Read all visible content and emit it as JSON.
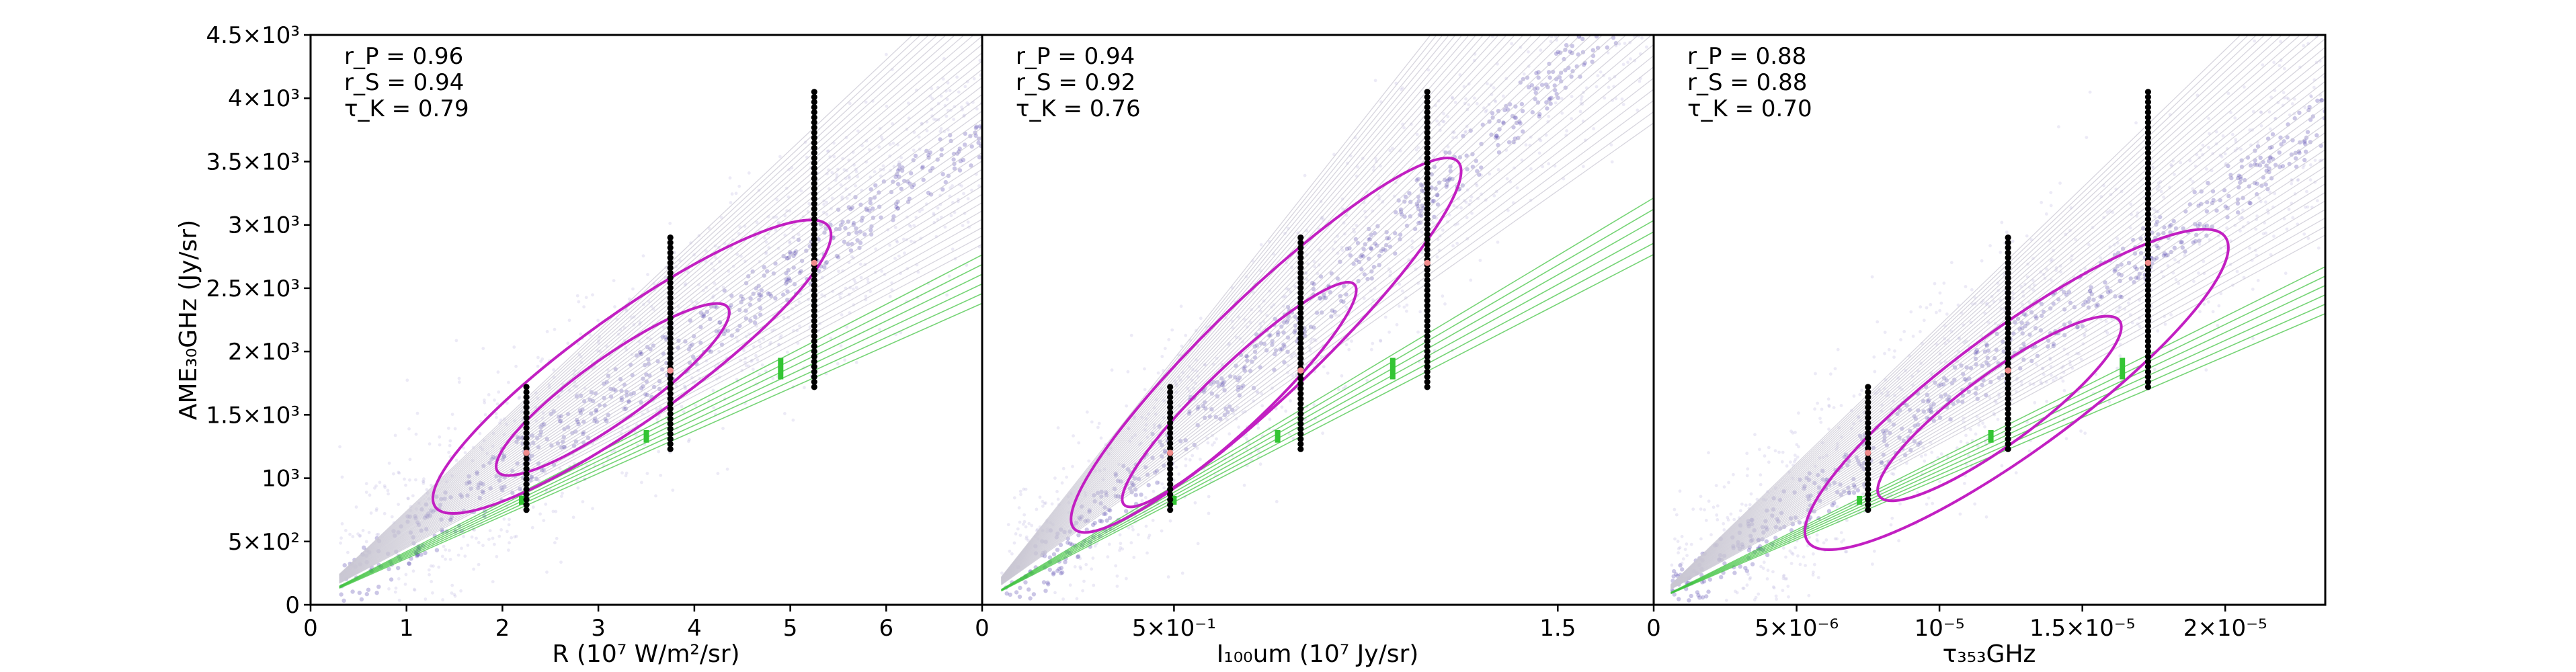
{
  "chart_data": [
    {
      "type": "scatter",
      "panel": "left",
      "xlabel": "R (10⁷ W/m²/sr)",
      "ylabel": "AME₃₀GHz (Jy/sr)",
      "xlim": [
        0,
        7
      ],
      "ylim": [
        0,
        4500
      ],
      "x_ticks": [
        0,
        1,
        2,
        3,
        4,
        5,
        6
      ],
      "x_tick_labels": [
        "0",
        "1",
        "2",
        "3",
        "4",
        "5",
        "6"
      ],
      "y_ticks": [
        0,
        500,
        1000,
        1500,
        2000,
        2500,
        3000,
        3500,
        4000,
        4500
      ],
      "y_tick_labels": [
        "0",
        "5×10²",
        "10³",
        "1.5×10³",
        "2×10³",
        "2.5×10³",
        "3×10³",
        "3.5×10³",
        "4×10³",
        "4.5×10³"
      ],
      "stats": [
        "r_P = 0.96",
        "r_S = 0.94",
        "τ_K = 0.79"
      ],
      "bin_columns": [
        {
          "x": 2.25,
          "y_min": 750,
          "y_max": 1720,
          "median": 1200
        },
        {
          "x": 3.75,
          "y_min": 1230,
          "y_max": 2900,
          "median": 1850
        },
        {
          "x": 5.25,
          "y_min": 1720,
          "y_max": 4050,
          "median": 2700
        }
      ],
      "green_markers": [
        {
          "x": 2.2,
          "y_min": 790,
          "y_max": 860
        },
        {
          "x": 3.5,
          "y_min": 1280,
          "y_max": 1380
        },
        {
          "x": 4.9,
          "y_min": 1780,
          "y_max": 1950
        }
      ],
      "green_fit": {
        "slope": 365,
        "intercept": 10
      },
      "grey_fit": {
        "slope": 540,
        "intercept": -60
      },
      "contour_outer": {
        "cx": 3.35,
        "cy": 1880,
        "halfwidth": 2.05,
        "halfheight": 420
      },
      "contour_inner": {
        "cx": 3.15,
        "cy": 1700,
        "halfwidth": 1.2,
        "halfheight": 250
      },
      "cloud": {
        "x0": 0.3,
        "x1": 7.0
      }
    },
    {
      "type": "scatter",
      "panel": "middle",
      "xlabel": "I₁₀₀um (10⁷ Jy/sr)",
      "ylabel": "",
      "xlim": [
        0,
        1.75
      ],
      "ylim": [
        0,
        4500
      ],
      "x_ticks": [
        0,
        0.5,
        1.5
      ],
      "x_tick_labels": [
        "0",
        "5×10⁻¹",
        "1.5"
      ],
      "y_ticks": [],
      "y_tick_labels": [],
      "stats": [
        "r_P = 0.94",
        "r_S = 0.92",
        "τ_K = 0.76"
      ],
      "bin_columns": [
        {
          "x": 0.49,
          "y_min": 750,
          "y_max": 1720,
          "median": 1200
        },
        {
          "x": 0.83,
          "y_min": 1230,
          "y_max": 2900,
          "median": 1850
        },
        {
          "x": 1.16,
          "y_min": 1720,
          "y_max": 4050,
          "median": 2700
        }
      ],
      "green_markers": [
        {
          "x": 0.5,
          "y_min": 790,
          "y_max": 860
        },
        {
          "x": 0.77,
          "y_min": 1280,
          "y_max": 1380
        },
        {
          "x": 1.07,
          "y_min": 1780,
          "y_max": 1950
        }
      ],
      "green_fit": {
        "slope": 1700,
        "intercept": 10
      },
      "grey_fit": {
        "slope": 2900,
        "intercept": -150
      },
      "contour_outer": {
        "cx": 0.74,
        "cy": 2050,
        "halfwidth": 0.5,
        "halfheight": 400
      },
      "contour_inner": {
        "cx": 0.67,
        "cy": 1660,
        "halfwidth": 0.3,
        "halfheight": 240
      },
      "cloud": {
        "x0": 0.05,
        "x1": 1.75
      }
    },
    {
      "type": "scatter",
      "panel": "right",
      "xlabel": "τ₃₅₃GHz",
      "ylabel": "",
      "xlim": [
        0,
        2.35e-05
      ],
      "ylim": [
        0,
        4500
      ],
      "x_ticks": [
        0,
        5e-06,
        1e-05,
        1.5e-05,
        2e-05
      ],
      "x_tick_labels": [
        "0",
        "5×10⁻⁶",
        "10⁻⁵",
        "1.5×10⁻⁵",
        "2×10⁻⁵"
      ],
      "y_ticks": [],
      "y_tick_labels": [],
      "stats": [
        "r_P = 0.88",
        "r_S = 0.88",
        "τ_K = 0.70"
      ],
      "bin_columns": [
        {
          "x": 7.5e-06,
          "y_min": 750,
          "y_max": 1720,
          "median": 1200
        },
        {
          "x": 1.24e-05,
          "y_min": 1230,
          "y_max": 2900,
          "median": 1850
        },
        {
          "x": 1.73e-05,
          "y_min": 1720,
          "y_max": 4050,
          "median": 2700
        }
      ],
      "green_markers": [
        {
          "x": 7.2e-06,
          "y_min": 790,
          "y_max": 860
        },
        {
          "x": 1.18e-05,
          "y_min": 1280,
          "y_max": 1380
        },
        {
          "x": 1.64e-05,
          "y_min": 1780,
          "y_max": 1950
        }
      ],
      "green_fit": {
        "slope": 105000000,
        "intercept": 10
      },
      "grey_fit": {
        "slope": 165000000,
        "intercept": -60
      },
      "contour_outer": {
        "cx": 1.27e-05,
        "cy": 1700,
        "halfwidth": 7.3e-06,
        "halfheight": 480
      },
      "contour_inner": {
        "cx": 1.21e-05,
        "cy": 1550,
        "halfwidth": 4.2e-06,
        "halfheight": 280
      },
      "cloud": {
        "x0": 6e-07,
        "x1": 2.35e-05
      }
    }
  ]
}
